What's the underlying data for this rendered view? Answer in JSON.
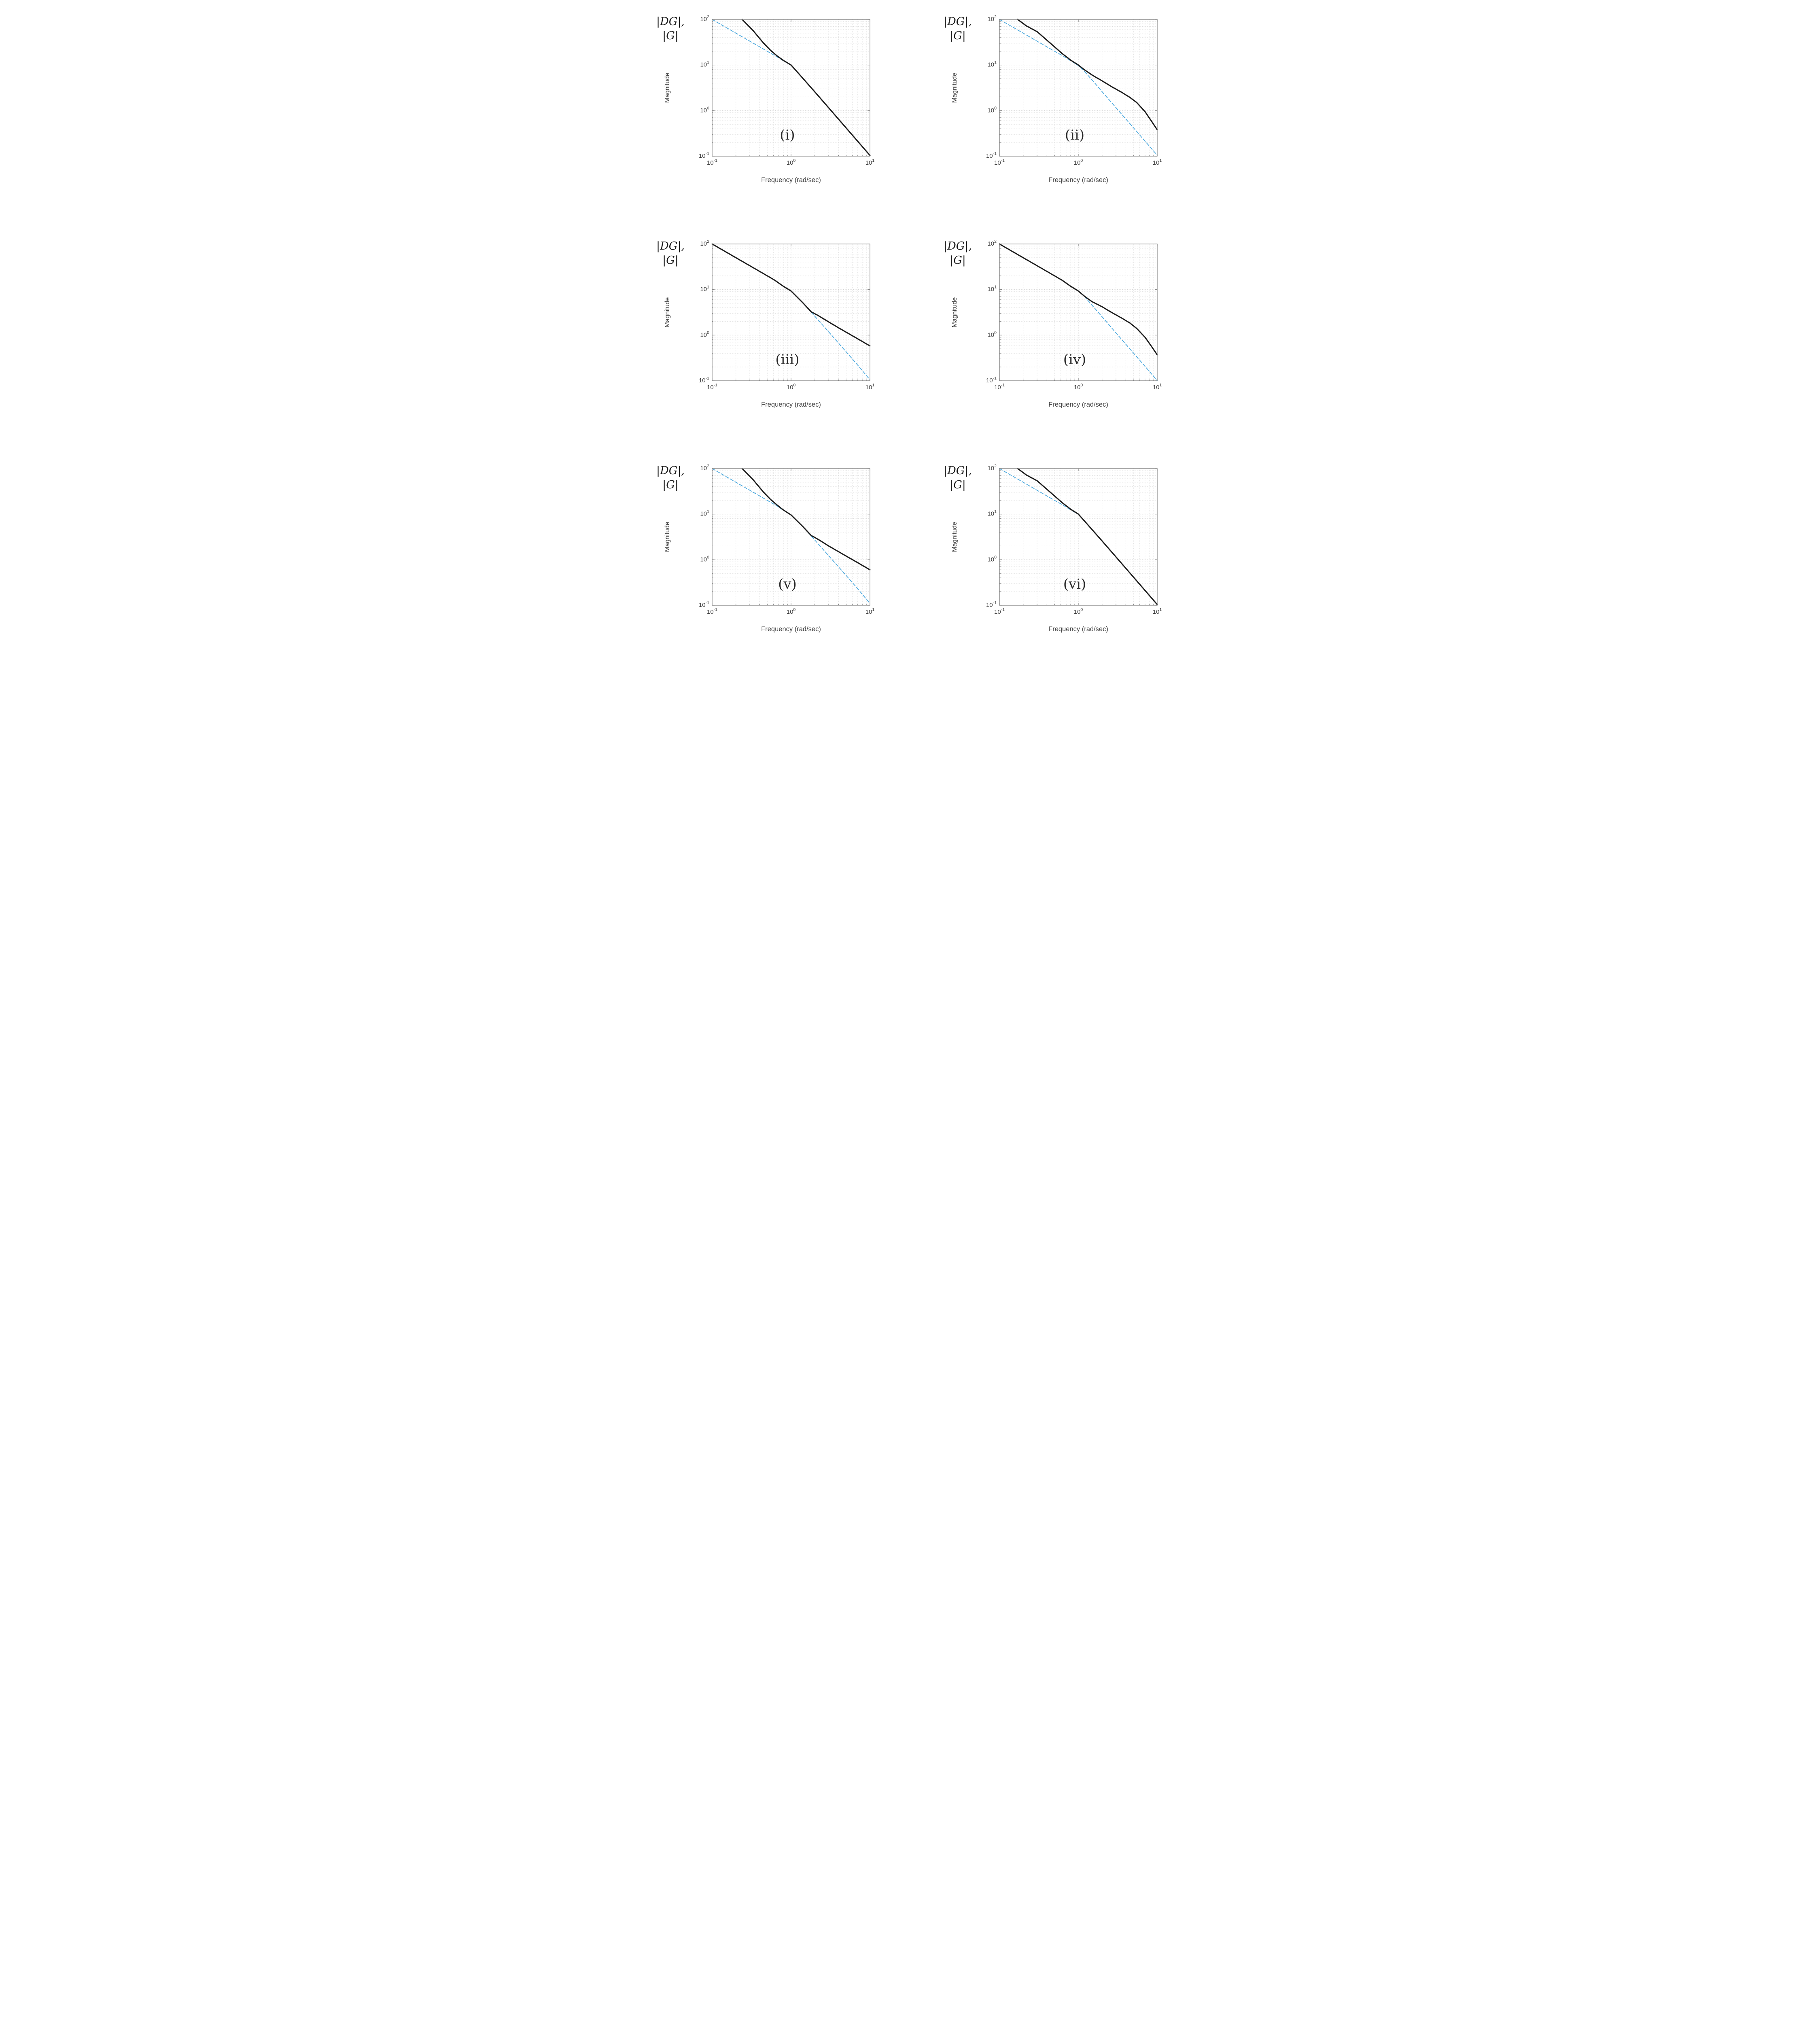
{
  "labels": {
    "math_label_line1": "|DG|,",
    "math_label_line2": "|G|",
    "magnitude": "Magnitude",
    "frequency": "Frequency (rad/sec)"
  },
  "style": {
    "solid_color": "#1c1c1c",
    "dashed_color": "#4aa8de",
    "grid_major": "#c4c4c4",
    "grid_minor": "#dadada",
    "axis_color": "#7f7f7f",
    "text_color": "#3c3c3c",
    "background": "#ffffff"
  },
  "axes": {
    "xscale": "log",
    "yscale": "log",
    "xlim": [
      0.1,
      10
    ],
    "ylim": [
      0.1,
      100
    ],
    "x_ticks": [
      {
        "value": 0.1,
        "base": "10",
        "exp": "-1"
      },
      {
        "value": 1,
        "base": "10",
        "exp": "0"
      },
      {
        "value": 10,
        "base": "10",
        "exp": "1"
      }
    ],
    "y_ticks": [
      {
        "value": 0.1,
        "base": "10",
        "exp": "-1"
      },
      {
        "value": 1,
        "base": "10",
        "exp": "0"
      },
      {
        "value": 10,
        "base": "10",
        "exp": "1"
      },
      {
        "value": 100,
        "base": "10",
        "exp": "2"
      }
    ]
  },
  "chart_data": [
    {
      "id": "i",
      "label": "(i)",
      "type": "line",
      "xlabel": "Frequency (rad/sec)",
      "ylabel": "Magnitude",
      "xlim": [
        0.1,
        10
      ],
      "ylim": [
        0.1,
        100
      ],
      "xscale": "log",
      "yscale": "log",
      "series": [
        {
          "name": "|DG|",
          "style": "solid",
          "points": [
            [
              0.24,
              100
            ],
            [
              0.33,
              57
            ],
            [
              0.45,
              30
            ],
            [
              0.55,
              21
            ],
            [
              0.66,
              16
            ],
            [
              0.8,
              12.6
            ],
            [
              1,
              10
            ],
            [
              1.3,
              6.0
            ],
            [
              1.7,
              3.55
            ],
            [
              2,
              2.58
            ],
            [
              3,
              1.15
            ],
            [
              5,
              0.415
            ],
            [
              7,
              0.212
            ],
            [
              10,
              0.104
            ]
          ]
        },
        {
          "name": "|G|",
          "style": "dashed",
          "points": [
            [
              0.1,
              100
            ],
            [
              0.2,
              50
            ],
            [
              0.35,
              28.6
            ],
            [
              0.5,
              20
            ],
            [
              0.66,
              15.2
            ],
            [
              0.8,
              12.4
            ],
            [
              1,
              9.9
            ],
            [
              1.3,
              6.0
            ],
            [
              1.7,
              3.55
            ],
            [
              2,
              2.58
            ],
            [
              3,
              1.15
            ],
            [
              5,
              0.415
            ],
            [
              7,
              0.212
            ],
            [
              10,
              0.104
            ]
          ]
        }
      ]
    },
    {
      "id": "ii",
      "label": "(ii)",
      "type": "line",
      "xlabel": "Frequency (rad/sec)",
      "ylabel": "Magnitude",
      "xlim": [
        0.1,
        10
      ],
      "ylim": [
        0.1,
        100
      ],
      "xscale": "log",
      "yscale": "log",
      "series": [
        {
          "name": "|DG|",
          "style": "solid",
          "points": [
            [
              0.17,
              100
            ],
            [
              0.22,
              72
            ],
            [
              0.3,
              54
            ],
            [
              0.4,
              35
            ],
            [
              0.5,
              25
            ],
            [
              0.62,
              18
            ],
            [
              0.8,
              12.8
            ],
            [
              1,
              10
            ],
            [
              1.2,
              7.8
            ],
            [
              1.5,
              6.0
            ],
            [
              2,
              4.5
            ],
            [
              2.6,
              3.4
            ],
            [
              3.5,
              2.55
            ],
            [
              4.5,
              1.95
            ],
            [
              5.5,
              1.5
            ],
            [
              7,
              0.95
            ],
            [
              8.5,
              0.58
            ],
            [
              10,
              0.38
            ]
          ]
        },
        {
          "name": "|G|",
          "style": "dashed",
          "points": [
            [
              0.1,
              100
            ],
            [
              0.2,
              50
            ],
            [
              0.35,
              28.6
            ],
            [
              0.5,
              20
            ],
            [
              0.62,
              16.3
            ],
            [
              0.8,
              12.4
            ],
            [
              1,
              9.7
            ],
            [
              1.2,
              7.2
            ],
            [
              1.6,
              4.1
            ],
            [
              2,
              2.6
            ],
            [
              3,
              1.16
            ],
            [
              5,
              0.42
            ],
            [
              7,
              0.214
            ],
            [
              10,
              0.105
            ]
          ]
        }
      ]
    },
    {
      "id": "iii",
      "label": "(iii)",
      "type": "line",
      "xlabel": "Frequency (rad/sec)",
      "ylabel": "Magnitude",
      "xlim": [
        0.1,
        10
      ],
      "ylim": [
        0.1,
        100
      ],
      "xscale": "log",
      "yscale": "log",
      "series": [
        {
          "name": "|DG|",
          "style": "solid",
          "points": [
            [
              0.1,
              100
            ],
            [
              0.2,
              50
            ],
            [
              0.35,
              28.6
            ],
            [
              0.5,
              20
            ],
            [
              0.62,
              16.1
            ],
            [
              0.8,
              11.8
            ],
            [
              1,
              9.3
            ],
            [
              1.4,
              5.2
            ],
            [
              1.8,
              3.25
            ],
            [
              2.2,
              2.7
            ],
            [
              3,
              1.95
            ],
            [
              4,
              1.45
            ],
            [
              5,
              1.16
            ],
            [
              7,
              0.83
            ],
            [
              10,
              0.58
            ]
          ]
        },
        {
          "name": "|G|",
          "style": "dashed",
          "points": [
            [
              0.1,
              100
            ],
            [
              0.2,
              50
            ],
            [
              0.35,
              28.6
            ],
            [
              0.5,
              20
            ],
            [
              0.62,
              16.1
            ],
            [
              0.8,
              11.8
            ],
            [
              1,
              9.3
            ],
            [
              1.4,
              5.2
            ],
            [
              2,
              2.6
            ],
            [
              3,
              1.18
            ],
            [
              5,
              0.43
            ],
            [
              7,
              0.22
            ],
            [
              10,
              0.105
            ]
          ]
        }
      ]
    },
    {
      "id": "iv",
      "label": "(iv)",
      "type": "line",
      "xlabel": "Frequency (rad/sec)",
      "ylabel": "Magnitude",
      "xlim": [
        0.1,
        10
      ],
      "ylim": [
        0.1,
        100
      ],
      "xscale": "log",
      "yscale": "log",
      "series": [
        {
          "name": "|DG|",
          "style": "solid",
          "points": [
            [
              0.1,
              100
            ],
            [
              0.2,
              50
            ],
            [
              0.35,
              28.6
            ],
            [
              0.5,
              20
            ],
            [
              0.62,
              16.1
            ],
            [
              0.8,
              11.8
            ],
            [
              1,
              9.3
            ],
            [
              1.2,
              7.1
            ],
            [
              1.5,
              5.4
            ],
            [
              2,
              4.2
            ],
            [
              2.6,
              3.2
            ],
            [
              3.5,
              2.4
            ],
            [
              4.5,
              1.85
            ],
            [
              5.5,
              1.4
            ],
            [
              7,
              0.9
            ],
            [
              8.5,
              0.56
            ],
            [
              10,
              0.37
            ]
          ]
        },
        {
          "name": "|G|",
          "style": "dashed",
          "points": [
            [
              0.1,
              100
            ],
            [
              0.2,
              50
            ],
            [
              0.35,
              28.6
            ],
            [
              0.5,
              20
            ],
            [
              0.62,
              16.1
            ],
            [
              0.8,
              11.8
            ],
            [
              1,
              9.3
            ],
            [
              1.2,
              7.0
            ],
            [
              1.6,
              3.95
            ],
            [
              2,
              2.53
            ],
            [
              3,
              1.12
            ],
            [
              5,
              0.405
            ],
            [
              7,
              0.207
            ],
            [
              10,
              0.101
            ]
          ]
        }
      ]
    },
    {
      "id": "v",
      "label": "(v)",
      "type": "line",
      "xlabel": "Frequency (rad/sec)",
      "ylabel": "Magnitude",
      "xlim": [
        0.1,
        10
      ],
      "ylim": [
        0.1,
        100
      ],
      "xscale": "log",
      "yscale": "log",
      "series": [
        {
          "name": "|DG|",
          "style": "solid",
          "points": [
            [
              0.24,
              100
            ],
            [
              0.33,
              57
            ],
            [
              0.45,
              30
            ],
            [
              0.55,
              21
            ],
            [
              0.66,
              16
            ],
            [
              0.8,
              12.3
            ],
            [
              1,
              9.6
            ],
            [
              1.4,
              5.4
            ],
            [
              1.8,
              3.4
            ],
            [
              2.2,
              2.8
            ],
            [
              3,
              2.0
            ],
            [
              4,
              1.5
            ],
            [
              5,
              1.2
            ],
            [
              7,
              0.86
            ],
            [
              10,
              0.6
            ]
          ]
        },
        {
          "name": "|G|",
          "style": "dashed",
          "points": [
            [
              0.1,
              100
            ],
            [
              0.2,
              50
            ],
            [
              0.35,
              28.6
            ],
            [
              0.5,
              20
            ],
            [
              0.66,
              15.2
            ],
            [
              0.8,
              12.1
            ],
            [
              1,
              9.6
            ],
            [
              1.4,
              5.4
            ],
            [
              2,
              2.7
            ],
            [
              3,
              1.22
            ],
            [
              5,
              0.45
            ],
            [
              7,
              0.23
            ],
            [
              10,
              0.11
            ]
          ]
        }
      ]
    },
    {
      "id": "vi",
      "label": "(vi)",
      "type": "line",
      "xlabel": "Frequency (rad/sec)",
      "ylabel": "Magnitude",
      "xlim": [
        0.1,
        10
      ],
      "ylim": [
        0.1,
        100
      ],
      "xscale": "log",
      "yscale": "log",
      "series": [
        {
          "name": "|DG|",
          "style": "solid",
          "points": [
            [
              0.17,
              100
            ],
            [
              0.22,
              72
            ],
            [
              0.3,
              54
            ],
            [
              0.4,
              35
            ],
            [
              0.5,
              25
            ],
            [
              0.62,
              18
            ],
            [
              0.8,
              12.8
            ],
            [
              1,
              10
            ],
            [
              1.3,
              6.0
            ],
            [
              1.7,
              3.55
            ],
            [
              2,
              2.58
            ],
            [
              3,
              1.15
            ],
            [
              5,
              0.415
            ],
            [
              7,
              0.212
            ],
            [
              10,
              0.104
            ]
          ]
        },
        {
          "name": "|G|",
          "style": "dashed",
          "points": [
            [
              0.1,
              100
            ],
            [
              0.2,
              50
            ],
            [
              0.35,
              28.6
            ],
            [
              0.5,
              20
            ],
            [
              0.62,
              16.3
            ],
            [
              0.8,
              12.4
            ],
            [
              1,
              9.9
            ],
            [
              1.3,
              6.0
            ],
            [
              1.7,
              3.55
            ],
            [
              2,
              2.58
            ],
            [
              3,
              1.15
            ],
            [
              5,
              0.415
            ],
            [
              7,
              0.212
            ],
            [
              10,
              0.104
            ]
          ]
        }
      ]
    }
  ]
}
